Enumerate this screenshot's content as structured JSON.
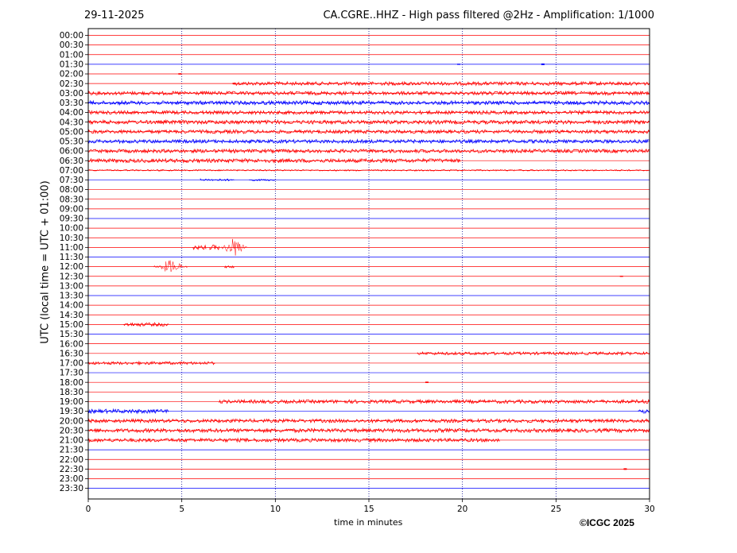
{
  "header": {
    "date": "29-11-2025",
    "station": "CA.CGRE..HHZ - High pass filtered @2Hz - Amplification: 1/1000"
  },
  "footer": {
    "copyright": "©ICGC 2025"
  },
  "colors": {
    "red": "#ff0000",
    "blue": "#0000ff",
    "grid": "#00008b"
  },
  "chart_data": {
    "type": "line",
    "title": "CA.CGRE..HHZ - High pass filtered @2Hz - Amplification: 1/1000",
    "xlabel": "time in minutes",
    "ylabel": "UTC (local time = UTC + 01:00)",
    "xlim": [
      0,
      30
    ],
    "xticks": [
      0,
      5,
      10,
      15,
      20,
      25,
      30
    ],
    "grid_x": [
      5,
      10,
      15,
      20,
      25
    ],
    "row_colors": [
      "red",
      "red",
      "red",
      "blue"
    ],
    "rows": [
      {
        "label": "00:00",
        "segments": []
      },
      {
        "label": "00:30",
        "segments": []
      },
      {
        "label": "01:00",
        "segments": []
      },
      {
        "label": "01:30",
        "segments": [],
        "events": [
          {
            "t": 24.3,
            "amp": 2
          },
          {
            "t": 19.8,
            "amp": 1
          }
        ]
      },
      {
        "label": "02:00",
        "segments": [],
        "events": [
          {
            "t": 4.9,
            "amp": 1.5
          }
        ]
      },
      {
        "label": "02:30",
        "segments": [
          {
            "from": 7.8,
            "to": 30,
            "amp": 2.2
          }
        ],
        "events": [
          {
            "t": 7.8,
            "amp": 2
          }
        ]
      },
      {
        "label": "03:00",
        "segments": [
          {
            "from": 0,
            "to": 30,
            "amp": 2.2
          }
        ]
      },
      {
        "label": "03:30",
        "segments": [
          {
            "from": 0,
            "to": 30,
            "amp": 2.4
          }
        ]
      },
      {
        "label": "04:00",
        "segments": [
          {
            "from": 0,
            "to": 30,
            "amp": 2.2
          }
        ]
      },
      {
        "label": "04:30",
        "segments": [
          {
            "from": 0,
            "to": 30,
            "amp": 2.4
          }
        ]
      },
      {
        "label": "05:00",
        "segments": [
          {
            "from": 0,
            "to": 30,
            "amp": 2.2
          }
        ]
      },
      {
        "label": "05:30",
        "segments": [
          {
            "from": 0,
            "to": 30,
            "amp": 2.2
          }
        ]
      },
      {
        "label": "06:00",
        "segments": [
          {
            "from": 0,
            "to": 30,
            "amp": 2.2
          }
        ]
      },
      {
        "label": "06:30",
        "segments": [
          {
            "from": 0,
            "to": 19.9,
            "amp": 2.4
          }
        ]
      },
      {
        "label": "07:00",
        "segments": [
          {
            "from": 0,
            "to": 30,
            "amp": 0.8
          }
        ]
      },
      {
        "label": "07:30",
        "segments": [
          {
            "from": 6,
            "to": 7.8,
            "amp": 1.2
          },
          {
            "from": 8.6,
            "to": 10,
            "amp": 1
          }
        ]
      },
      {
        "label": "08:00",
        "segments": []
      },
      {
        "label": "08:30",
        "segments": []
      },
      {
        "label": "09:00",
        "segments": []
      },
      {
        "label": "09:30",
        "segments": []
      },
      {
        "label": "10:00",
        "segments": []
      },
      {
        "label": "10:30",
        "segments": []
      },
      {
        "label": "11:00",
        "segments": [
          {
            "from": 5.6,
            "to": 6.3,
            "amp": 2.5
          },
          {
            "from": 6.5,
            "to": 7,
            "amp": 3
          },
          {
            "from": 7.1,
            "to": 8.5,
            "amp": 13
          }
        ]
      },
      {
        "label": "11:30",
        "segments": []
      },
      {
        "label": "12:00",
        "segments": [
          {
            "from": 3.5,
            "to": 5.3,
            "amp": 9
          },
          {
            "from": 7.3,
            "to": 7.8,
            "amp": 1.5
          }
        ]
      },
      {
        "label": "12:30",
        "segments": [],
        "events": [
          {
            "t": 28.5,
            "amp": 1
          }
        ]
      },
      {
        "label": "13:00",
        "segments": []
      },
      {
        "label": "13:30",
        "segments": []
      },
      {
        "label": "14:00",
        "segments": []
      },
      {
        "label": "14:30",
        "segments": []
      },
      {
        "label": "15:00",
        "segments": [
          {
            "from": 1.9,
            "to": 4.3,
            "amp": 2.2
          }
        ]
      },
      {
        "label": "15:30",
        "segments": []
      },
      {
        "label": "16:00",
        "segments": []
      },
      {
        "label": "16:30",
        "segments": [
          {
            "from": 17.6,
            "to": 30,
            "amp": 1.8
          }
        ]
      },
      {
        "label": "17:00",
        "segments": [
          {
            "from": 0,
            "to": 6.8,
            "amp": 1.8
          }
        ]
      },
      {
        "label": "17:30",
        "segments": []
      },
      {
        "label": "18:00",
        "segments": [],
        "events": [
          {
            "t": 18.1,
            "amp": 1.5
          }
        ]
      },
      {
        "label": "18:30",
        "segments": []
      },
      {
        "label": "19:00",
        "segments": [
          {
            "from": 7,
            "to": 30,
            "amp": 2.2
          }
        ]
      },
      {
        "label": "19:30",
        "segments": [
          {
            "from": 0,
            "to": 4.3,
            "amp": 2.5
          },
          {
            "from": 29.4,
            "to": 30,
            "amp": 2.5
          }
        ]
      },
      {
        "label": "20:00",
        "segments": [
          {
            "from": 0,
            "to": 30,
            "amp": 2.2
          }
        ]
      },
      {
        "label": "20:30",
        "segments": [
          {
            "from": 0,
            "to": 30,
            "amp": 2.4
          }
        ]
      },
      {
        "label": "21:00",
        "segments": [
          {
            "from": 0,
            "to": 22,
            "amp": 2.2
          }
        ]
      },
      {
        "label": "21:30",
        "segments": []
      },
      {
        "label": "22:00",
        "segments": []
      },
      {
        "label": "22:30",
        "segments": [],
        "events": [
          {
            "t": 28.7,
            "amp": 2
          }
        ]
      },
      {
        "label": "23:00",
        "segments": []
      },
      {
        "label": "23:30",
        "segments": []
      }
    ]
  }
}
